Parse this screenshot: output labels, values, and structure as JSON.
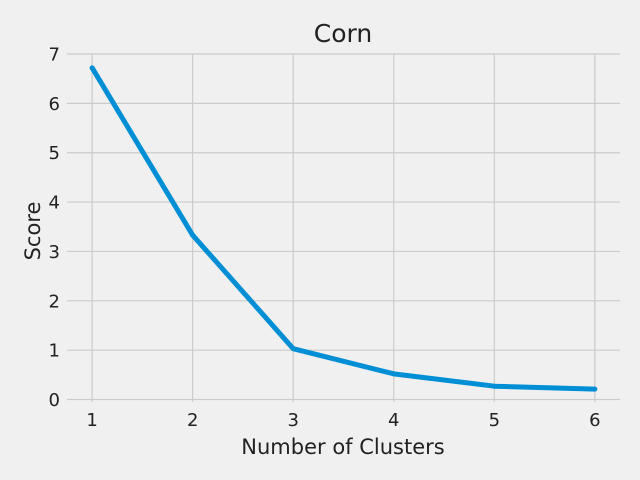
{
  "chart_data": {
    "type": "line",
    "title": "Corn",
    "xlabel": "Number of Clusters",
    "ylabel": "Score",
    "x": [
      1,
      2,
      3,
      4,
      5,
      6
    ],
    "series": [
      {
        "values": [
          6.72,
          3.33,
          1.03,
          0.52,
          0.27,
          0.21
        ],
        "color": "#008fd5"
      }
    ],
    "xlim": [
      0.75,
      6.25
    ],
    "ylim": [
      -0.05,
      7.0
    ],
    "xticks": [
      1,
      2,
      3,
      4,
      5,
      6
    ],
    "yticks": [
      0,
      1,
      2,
      3,
      4,
      5,
      6,
      7
    ],
    "grid": true,
    "legend": "none",
    "style": {
      "background": "#f0f0f0",
      "grid_color": "#cbcbcb",
      "text_color": "#222222"
    }
  }
}
